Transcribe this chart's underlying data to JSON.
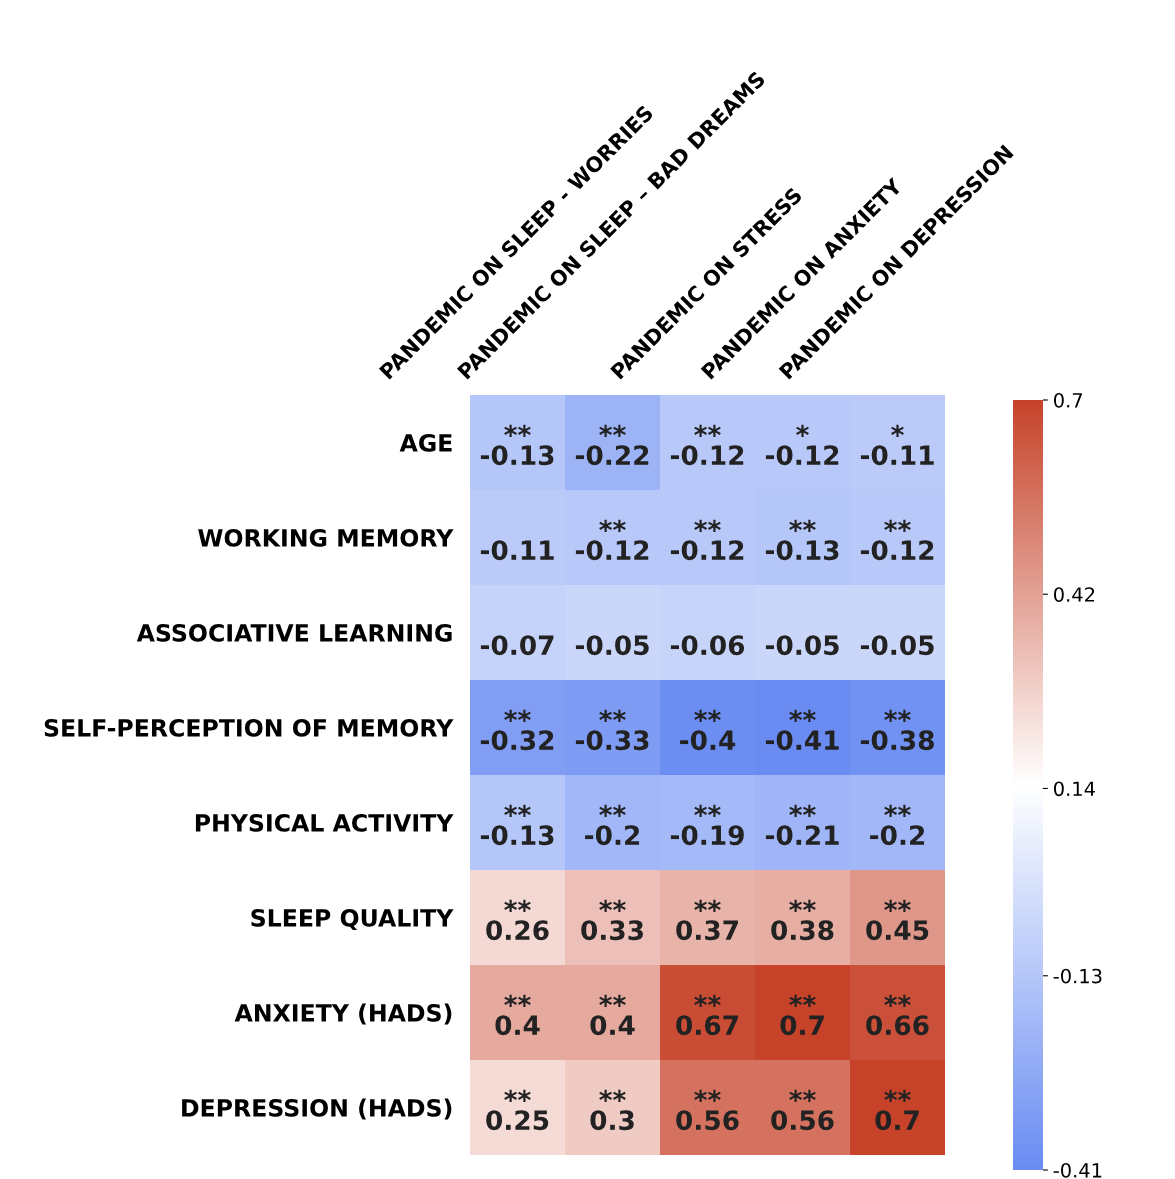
{
  "chart_data": {
    "type": "heatmap",
    "categories": [
      "PANDEMIC ON SLEEP - WORRIES",
      "PANDEMIC ON SLEEP – BAD DREAMS",
      "PANDEMIC ON STRESS",
      "PANDEMIC ON ANXIETY",
      "PANDEMIC ON DEPRESSION"
    ],
    "y_categories": [
      "AGE",
      "WORKING MEMORY",
      "ASSOCIATIVE LEARNING",
      "SELF-PERCEPTION OF MEMORY",
      "PHYSICAL ACTIVITY",
      "SLEEP QUALITY",
      "ANXIETY (HADS)",
      "DEPRESSION (HADS)"
    ],
    "cells": [
      [
        -0.13,
        -0.22,
        -0.12,
        -0.12,
        -0.11
      ],
      [
        -0.11,
        -0.12,
        -0.12,
        -0.13,
        -0.12
      ],
      [
        -0.07,
        -0.05,
        -0.06,
        -0.05,
        -0.05
      ],
      [
        -0.32,
        -0.33,
        -0.4,
        -0.41,
        -0.38
      ],
      [
        -0.13,
        -0.2,
        -0.19,
        -0.21,
        -0.2
      ],
      [
        0.26,
        0.33,
        0.37,
        0.38,
        0.45
      ],
      [
        0.4,
        0.4,
        0.67,
        0.7,
        0.66
      ],
      [
        0.25,
        0.3,
        0.56,
        0.56,
        0.7
      ]
    ],
    "cell_labels": [
      [
        "**\n-0.13",
        "**\n-0.22",
        "**\n-0.12",
        "*\n-0.12",
        "*\n-0.11"
      ],
      [
        "\n-0.11",
        "**\n-0.12",
        "**\n-0.12",
        "**\n-0.13",
        "**\n-0.12"
      ],
      [
        "\n-0.07",
        "\n-0.05",
        "\n-0.06",
        "\n-0.05",
        "\n-0.05"
      ],
      [
        "**\n-0.32",
        "**\n-0.33",
        "**\n-0.4",
        "**\n-0.41",
        "**\n-0.38"
      ],
      [
        "**\n-0.13",
        "**\n-0.2",
        "**\n-0.19",
        "**\n-0.21",
        "**\n-0.2"
      ],
      [
        "**\n0.26",
        "**\n0.33",
        "**\n0.37",
        "**\n0.38",
        "**\n0.45"
      ],
      [
        "**\n0.4",
        "**\n0.4",
        "**\n0.67",
        "**\n0.7",
        "**\n0.66"
      ],
      [
        "**\n0.25",
        "**\n0.3",
        "**\n0.56",
        "**\n0.56",
        "**\n0.7"
      ]
    ],
    "clim": [
      -0.41,
      0.7
    ],
    "cticks": [
      -0.41,
      -0.13,
      0.14,
      0.42,
      0.7
    ]
  }
}
